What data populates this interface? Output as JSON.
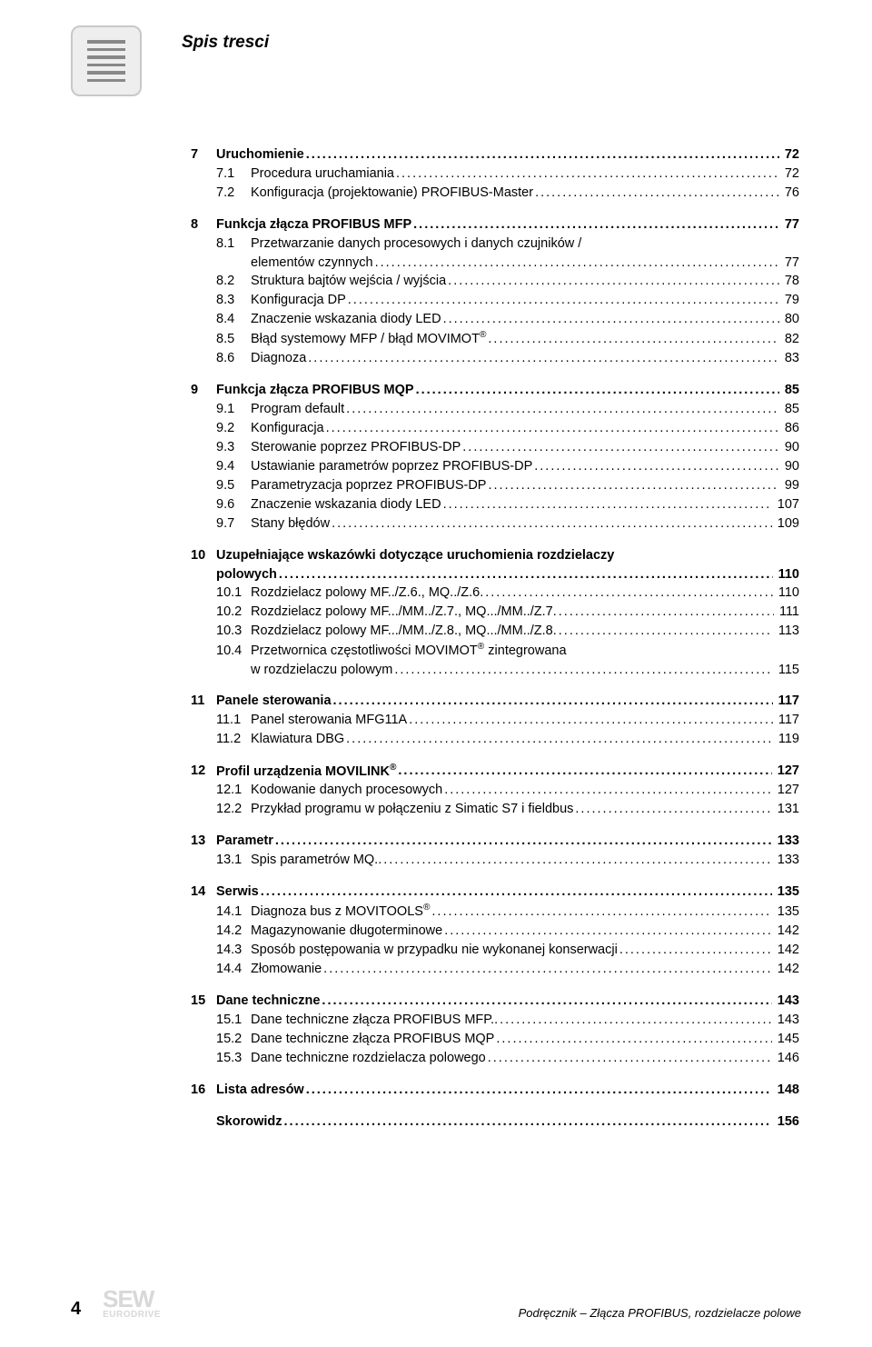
{
  "header": {
    "title": "Spis tresci"
  },
  "toc": [
    {
      "type": "chapter",
      "num": "7",
      "label": "Uruchomienie",
      "page": "72"
    },
    {
      "type": "sub",
      "num": "7.1",
      "label": "Procedura uruchamiania",
      "page": "72"
    },
    {
      "type": "sub",
      "num": "7.2",
      "label": "Konfiguracja (projektowanie) PROFIBUS-Master",
      "page": "76"
    },
    {
      "type": "spacer"
    },
    {
      "type": "chapter",
      "num": "8",
      "label": "Funkcja złącza PROFIBUS MFP",
      "page": "77"
    },
    {
      "type": "sub",
      "num": "8.1",
      "label": "Przetwarzanie danych procesowych i danych czujników /",
      "page": null
    },
    {
      "type": "cont",
      "label": "elementów czynnych",
      "page": "77"
    },
    {
      "type": "sub",
      "num": "8.2",
      "label": "Struktura bajtów wejścia / wyjścia",
      "page": "78"
    },
    {
      "type": "sub",
      "num": "8.3",
      "label": "Konfiguracja DP",
      "page": "79"
    },
    {
      "type": "sub",
      "num": "8.4",
      "label": "Znaczenie wskazania diody LED",
      "page": "80"
    },
    {
      "type": "sub",
      "num": "8.5",
      "label": "Błąd systemowy MFP / błąd MOVIMOT®",
      "page": "82",
      "sup": true
    },
    {
      "type": "sub",
      "num": "8.6",
      "label": "Diagnoza",
      "page": "83"
    },
    {
      "type": "spacer"
    },
    {
      "type": "chapter",
      "num": "9",
      "label": "Funkcja złącza PROFIBUS MQP",
      "page": "85"
    },
    {
      "type": "sub",
      "num": "9.1",
      "label": "Program default",
      "page": "85"
    },
    {
      "type": "sub",
      "num": "9.2",
      "label": "Konfiguracja",
      "page": "86"
    },
    {
      "type": "sub",
      "num": "9.3",
      "label": "Sterowanie poprzez PROFIBUS-DP",
      "page": "90"
    },
    {
      "type": "sub",
      "num": "9.4",
      "label": "Ustawianie parametrów poprzez PROFIBUS-DP",
      "page": "90"
    },
    {
      "type": "sub",
      "num": "9.5",
      "label": "Parametryzacja poprzez PROFIBUS-DP",
      "page": "99"
    },
    {
      "type": "sub",
      "num": "9.6",
      "label": "Znaczenie wskazania diody LED",
      "page": "107"
    },
    {
      "type": "sub",
      "num": "9.7",
      "label": "Stany błędów",
      "page": "109"
    },
    {
      "type": "spacer"
    },
    {
      "type": "chapter",
      "num": "10",
      "label": "Uzupełniające wskazówki dotyczące uruchomienia rozdzielaczy",
      "page": null
    },
    {
      "type": "chapter-cont",
      "label": "polowych",
      "page": "110"
    },
    {
      "type": "sub",
      "num": "10.1",
      "label": "Rozdzielacz polowy MF../Z.6., MQ../Z.6. ",
      "page": "110"
    },
    {
      "type": "sub",
      "num": "10.2",
      "label": "Rozdzielacz polowy MF.../MM../Z.7., MQ.../MM../Z.7. ",
      "page": "111"
    },
    {
      "type": "sub",
      "num": "10.3",
      "label": "Rozdzielacz polowy MF.../MM../Z.8., MQ.../MM../Z.8. ",
      "page": "113"
    },
    {
      "type": "sub",
      "num": "10.4",
      "label": "Przetwornica częstotliwości MOVIMOT® zintegrowana",
      "page": null,
      "sup": true
    },
    {
      "type": "cont",
      "label": "w rozdzielaczu polowym",
      "page": "115"
    },
    {
      "type": "spacer"
    },
    {
      "type": "chapter",
      "num": "11",
      "label": "Panele sterowania",
      "page": "117"
    },
    {
      "type": "sub",
      "num": "11.1",
      "label": "Panel sterowania MFG11A",
      "page": "117"
    },
    {
      "type": "sub",
      "num": "11.2",
      "label": "Klawiatura DBG",
      "page": "119"
    },
    {
      "type": "spacer"
    },
    {
      "type": "chapter",
      "num": "12",
      "label": "Profil urządzenia MOVILINK®",
      "page": "127",
      "sup": true
    },
    {
      "type": "sub",
      "num": "12.1",
      "label": "Kodowanie danych procesowych",
      "page": "127"
    },
    {
      "type": "sub",
      "num": "12.2",
      "label": "Przykład programu w połączeniu z Simatic S7 i fieldbus",
      "page": "131"
    },
    {
      "type": "spacer"
    },
    {
      "type": "chapter",
      "num": "13",
      "label": "Parametr",
      "page": "133"
    },
    {
      "type": "sub",
      "num": "13.1",
      "label": "Spis parametrów MQ.. ",
      "page": "133"
    },
    {
      "type": "spacer"
    },
    {
      "type": "chapter",
      "num": "14",
      "label": "Serwis",
      "page": "135"
    },
    {
      "type": "sub",
      "num": "14.1",
      "label": "Diagnoza bus z MOVITOOLS®",
      "page": "135",
      "sup": true
    },
    {
      "type": "sub",
      "num": "14.2",
      "label": "Magazynowanie długoterminowe",
      "page": "142"
    },
    {
      "type": "sub",
      "num": "14.3",
      "label": "Sposób postępowania w przypadku nie wykonanej konserwacji",
      "page": "142"
    },
    {
      "type": "sub",
      "num": "14.4",
      "label": "Złomowanie",
      "page": "142"
    },
    {
      "type": "spacer"
    },
    {
      "type": "chapter",
      "num": "15",
      "label": "Dane techniczne",
      "page": "143"
    },
    {
      "type": "sub",
      "num": "15.1",
      "label": "Dane techniczne złącza PROFIBUS MFP.. ",
      "page": "143"
    },
    {
      "type": "sub",
      "num": "15.2",
      "label": "Dane techniczne złącza PROFIBUS MQP",
      "page": "145"
    },
    {
      "type": "sub",
      "num": "15.3",
      "label": "Dane techniczne rozdzielacza polowego",
      "page": "146"
    },
    {
      "type": "spacer"
    },
    {
      "type": "chapter",
      "num": "16",
      "label": "Lista adresów",
      "page": "148"
    },
    {
      "type": "spacer"
    },
    {
      "type": "chapter",
      "num": "",
      "label": "Skorowidz",
      "page": "156"
    }
  ],
  "footer": {
    "pageNumber": "4",
    "logoTop": "SEW",
    "logoBottom": "EURODRIVE",
    "caption": "Podręcznik – Złącza PROFIBUS, rozdzielacze polowe"
  }
}
